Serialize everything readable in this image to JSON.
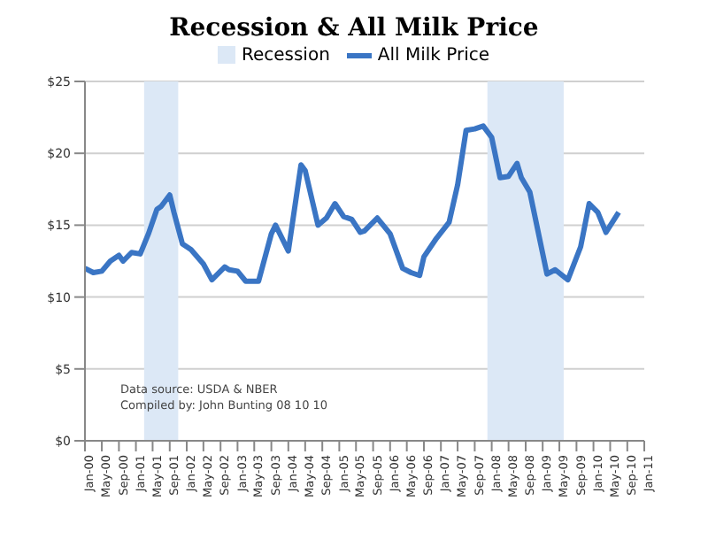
{
  "chart_data": {
    "type": "line",
    "title": "Recession & All Milk Price",
    "x": [
      "2000-01",
      "2000-03",
      "2000-05",
      "2000-07",
      "2000-08",
      "2000-09",
      "2000-10",
      "2000-12",
      "2001-02",
      "2001-04",
      "2001-06",
      "2001-07",
      "2001-09",
      "2001-10",
      "2001-12",
      "2002-02",
      "2002-05",
      "2002-07",
      "2002-10",
      "2002-11",
      "2003-01",
      "2003-03",
      "2003-06",
      "2003-09",
      "2003-10",
      "2003-11",
      "2004-01",
      "2004-04",
      "2004-05",
      "2004-08",
      "2004-10",
      "2004-12",
      "2005-02",
      "2005-04",
      "2005-06",
      "2005-07",
      "2005-10",
      "2006-01",
      "2006-04",
      "2006-06",
      "2006-08",
      "2006-09",
      "2006-12",
      "2007-03",
      "2007-05",
      "2007-07",
      "2007-09",
      "2007-11",
      "2008-01",
      "2008-03",
      "2008-05",
      "2008-07",
      "2008-08",
      "2008-10",
      "2009-02",
      "2009-04",
      "2009-07",
      "2009-10",
      "2009-12",
      "2010-02",
      "2010-04",
      "2010-07"
    ],
    "series": [
      {
        "name": "All Milk Price",
        "color": "#3a75c4",
        "values": [
          12.0,
          11.7,
          11.8,
          12.5,
          12.7,
          12.9,
          12.5,
          13.1,
          13.0,
          14.4,
          16.1,
          16.3,
          17.1,
          15.9,
          13.7,
          13.3,
          12.3,
          11.2,
          12.1,
          11.9,
          11.8,
          11.1,
          11.1,
          14.4,
          15.0,
          14.4,
          13.2,
          19.2,
          18.8,
          15.0,
          15.5,
          16.5,
          15.6,
          15.4,
          14.5,
          14.6,
          15.5,
          14.4,
          12.0,
          11.7,
          11.5,
          12.8,
          14.1,
          15.2,
          17.8,
          21.6,
          21.7,
          21.9,
          21.1,
          18.3,
          18.4,
          19.3,
          18.3,
          17.3,
          11.6,
          11.9,
          11.2,
          13.5,
          16.5,
          15.9,
          14.5,
          15.9
        ]
      }
    ],
    "bands": [
      {
        "axis": "x",
        "from": "2001-03",
        "to": "2001-11",
        "label": "Recession",
        "color": "#dce8f6"
      },
      {
        "axis": "x",
        "from": "2007-12",
        "to": "2009-06",
        "color": "#dce8f6"
      }
    ],
    "xlim": [
      "2000-01",
      "2011-01"
    ],
    "xticks": [
      {
        "value": "2000-01",
        "label": "Jan-00"
      },
      {
        "value": "2000-05",
        "label": "May-00"
      },
      {
        "value": "2000-09",
        "label": "Sep-00"
      },
      {
        "value": "2001-01",
        "label": "Jan-01"
      },
      {
        "value": "2001-05",
        "label": "May-01"
      },
      {
        "value": "2001-09",
        "label": "Sep-01"
      },
      {
        "value": "2002-01",
        "label": "Jan-02"
      },
      {
        "value": "2002-05",
        "label": "May-02"
      },
      {
        "value": "2002-09",
        "label": "Sep-02"
      },
      {
        "value": "2003-01",
        "label": "Jan-03"
      },
      {
        "value": "2003-05",
        "label": "May-03"
      },
      {
        "value": "2003-09",
        "label": "Sep-03"
      },
      {
        "value": "2004-01",
        "label": "Jan-04"
      },
      {
        "value": "2004-05",
        "label": "May-04"
      },
      {
        "value": "2004-09",
        "label": "Sep-04"
      },
      {
        "value": "2005-01",
        "label": "Jan-05"
      },
      {
        "value": "2005-05",
        "label": "May-05"
      },
      {
        "value": "2005-09",
        "label": "Sep-05"
      },
      {
        "value": "2006-01",
        "label": "Jan-06"
      },
      {
        "value": "2006-05",
        "label": "May-06"
      },
      {
        "value": "2006-09",
        "label": "Sep-06"
      },
      {
        "value": "2007-01",
        "label": "Jan-07"
      },
      {
        "value": "2007-05",
        "label": "May-07"
      },
      {
        "value": "2007-09",
        "label": "Sep-07"
      },
      {
        "value": "2008-01",
        "label": "Jan-08"
      },
      {
        "value": "2008-05",
        "label": "May-08"
      },
      {
        "value": "2008-09",
        "label": "Sep-08"
      },
      {
        "value": "2009-01",
        "label": "Jan-09"
      },
      {
        "value": "2009-05",
        "label": "May-09"
      },
      {
        "value": "2009-09",
        "label": "Sep-09"
      },
      {
        "value": "2010-01",
        "label": "Jan-10"
      },
      {
        "value": "2010-05",
        "label": "May-10"
      },
      {
        "value": "2010-09",
        "label": "Sep-10"
      },
      {
        "value": "2011-01",
        "label": "Jan-11"
      }
    ],
    "ylim": [
      0,
      25
    ],
    "yticks": [
      {
        "value": 0,
        "label": "$0"
      },
      {
        "value": 5,
        "label": "$5"
      },
      {
        "value": 10,
        "label": "$10"
      },
      {
        "value": 15,
        "label": "$15"
      },
      {
        "value": 20,
        "label": "$20"
      },
      {
        "value": 25,
        "label": "$25"
      }
    ],
    "grid": "y",
    "legend": "top",
    "marker": "none",
    "line_style": "solid",
    "annotations": [
      "Data source: USDA & NBER",
      "Compiled by: John Bunting 08 10 10"
    ]
  }
}
